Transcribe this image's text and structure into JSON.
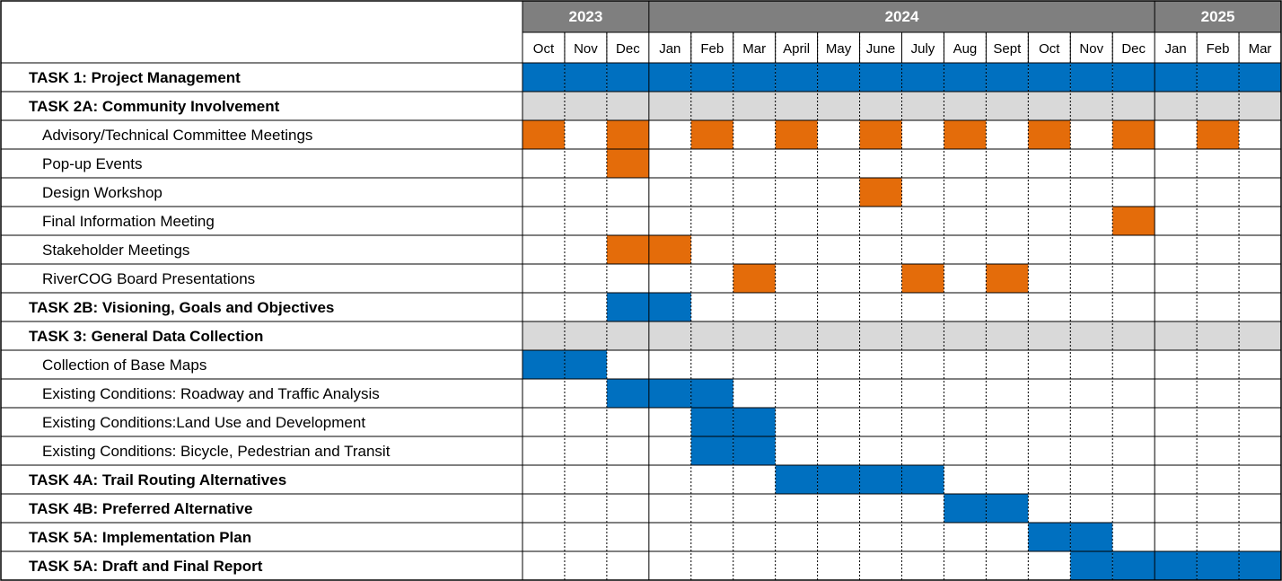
{
  "chart_data": {
    "type": "gantt",
    "years": [
      {
        "label": "2023",
        "months": 3
      },
      {
        "label": "2024",
        "months": 12
      },
      {
        "label": "2025",
        "months": 3
      }
    ],
    "months": [
      "Oct",
      "Nov",
      "Dec",
      "Jan",
      "Feb",
      "Mar",
      "April",
      "May",
      "June",
      "July",
      "Aug",
      "Sept",
      "Oct",
      "Nov",
      "Dec",
      "Jan",
      "Feb",
      "Mar"
    ],
    "tasks": [
      {
        "label": "TASK 1:  Project Management",
        "bold": true,
        "shade": false,
        "cells": [
          0,
          1,
          2,
          3,
          4,
          5,
          6,
          7,
          8,
          9,
          10,
          11,
          12,
          13,
          14,
          15,
          16,
          17
        ],
        "color": "blue"
      },
      {
        "label": "TASK 2A: Community Involvement",
        "bold": true,
        "shade": true,
        "cells": [],
        "color": "blue"
      },
      {
        "label": "Advisory/Technical Committee Meetings",
        "bold": false,
        "shade": false,
        "cells": [
          0,
          2,
          4,
          6,
          8,
          10,
          12,
          14,
          16
        ],
        "color": "orange"
      },
      {
        "label": "Pop-up Events",
        "bold": false,
        "shade": false,
        "cells": [
          2
        ],
        "color": "orange"
      },
      {
        "label": "Design Workshop",
        "bold": false,
        "shade": false,
        "cells": [
          8
        ],
        "color": "orange"
      },
      {
        "label": "Final Information Meeting",
        "bold": false,
        "shade": false,
        "cells": [
          14
        ],
        "color": "orange"
      },
      {
        "label": "Stakeholder Meetings",
        "bold": false,
        "shade": false,
        "cells": [
          2,
          3
        ],
        "color": "orange"
      },
      {
        "label": "RiverCOG Board Presentations",
        "bold": false,
        "shade": false,
        "cells": [
          5,
          9,
          11
        ],
        "color": "orange"
      },
      {
        "label": "TASK 2B: Visioning, Goals and Objectives",
        "bold": true,
        "shade": false,
        "cells": [
          2,
          3
        ],
        "color": "blue"
      },
      {
        "label": "TASK 3: General Data Collection",
        "bold": true,
        "shade": true,
        "cells": [],
        "color": "blue"
      },
      {
        "label": "Collection of Base Maps",
        "bold": false,
        "shade": false,
        "cells": [
          0,
          1
        ],
        "color": "blue"
      },
      {
        "label": "Existing Conditions: Roadway and Traffic Analysis",
        "bold": false,
        "shade": false,
        "cells": [
          2,
          3,
          4
        ],
        "color": "blue"
      },
      {
        "label": "Existing Conditions:Land Use and Development",
        "bold": false,
        "shade": false,
        "cells": [
          4,
          5
        ],
        "color": "blue"
      },
      {
        "label": "Existing Conditions: Bicycle, Pedestrian and Transit",
        "bold": false,
        "shade": false,
        "cells": [
          4,
          5
        ],
        "color": "blue"
      },
      {
        "label": "TASK 4A: Trail Routing Alternatives",
        "bold": true,
        "shade": false,
        "cells": [
          6,
          7,
          8,
          9
        ],
        "color": "blue"
      },
      {
        "label": "TASK 4B: Preferred Alternative",
        "bold": true,
        "shade": false,
        "cells": [
          10,
          11
        ],
        "color": "blue"
      },
      {
        "label": "TASK 5A: Implementation Plan",
        "bold": true,
        "shade": false,
        "cells": [
          12,
          13
        ],
        "color": "blue"
      },
      {
        "label": "TASK 5A: Draft and Final Report",
        "bold": true,
        "shade": false,
        "cells": [
          13,
          14,
          15,
          16,
          17
        ],
        "color": "blue"
      }
    ],
    "colors": {
      "blue": "#0070c0",
      "orange": "#e46c0a",
      "shade": "#d9d9d9",
      "year_header": "#7f7f7f",
      "year_text": "#ffffff",
      "grid": "#000000",
      "text": "#000000"
    }
  }
}
